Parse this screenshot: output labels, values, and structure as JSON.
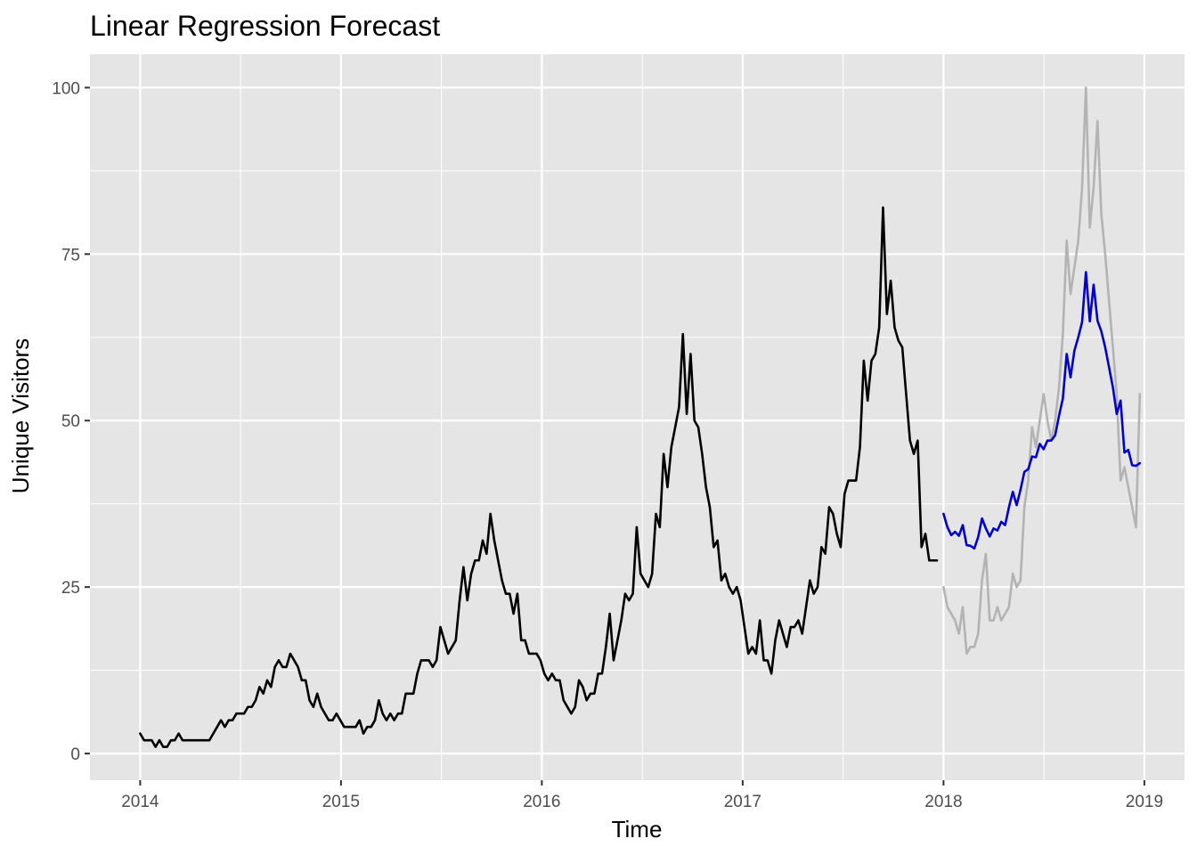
{
  "chart_data": {
    "type": "line",
    "title": "Linear Regression Forecast",
    "xlabel": "Time",
    "ylabel": "Unique Visitors",
    "xlim": [
      2013.75,
      2019.2
    ],
    "ylim": [
      -4,
      105
    ],
    "x_ticks": [
      2014,
      2015,
      2016,
      2017,
      2018,
      2019
    ],
    "x_tick_labels": [
      "2014",
      "2015",
      "2016",
      "2017",
      "2018",
      "2019"
    ],
    "y_ticks": [
      0,
      25,
      50,
      75,
      100
    ],
    "y_tick_labels": [
      "0",
      "25",
      "50",
      "75",
      "100"
    ],
    "grid": true,
    "legend": "none",
    "colors": {
      "panel_bg": "#e5e5e5",
      "grid": "#ffffff",
      "observed": "#000000",
      "forecast": "#0000cc",
      "actual": "#b3b3b3"
    },
    "series": [
      {
        "role": "observed",
        "start": 2014,
        "step_weeks": 1,
        "values": [
          3,
          2,
          2,
          2,
          1,
          2,
          1,
          1,
          2,
          2,
          3,
          2,
          2,
          2,
          2,
          2,
          2,
          2,
          2,
          3,
          4,
          5,
          4,
          5,
          5,
          6,
          6,
          6,
          7,
          7,
          8,
          10,
          9,
          11,
          10,
          13,
          14,
          13,
          13,
          15,
          14,
          13,
          11,
          11,
          8,
          7,
          9,
          7,
          6,
          5,
          5,
          6,
          5,
          4,
          4,
          4,
          4,
          5,
          3,
          4,
          4,
          5,
          8,
          6,
          5,
          6,
          5,
          6,
          6,
          9,
          9,
          9,
          12,
          14,
          14,
          14,
          13,
          14,
          19,
          17,
          15,
          16,
          17,
          23,
          28,
          23,
          27,
          29,
          29,
          32,
          30,
          36,
          32,
          29,
          26,
          24,
          24,
          21,
          24,
          17,
          17,
          15,
          15,
          15,
          14,
          12,
          11,
          12,
          11,
          11,
          8,
          7,
          6,
          7,
          11,
          10,
          8,
          9,
          9,
          12,
          12,
          16,
          21,
          14,
          17,
          20,
          24,
          23,
          24,
          34,
          27,
          26,
          25,
          27,
          36,
          34,
          45,
          40,
          46,
          49,
          52,
          63,
          51,
          60,
          50,
          49,
          45,
          40,
          37,
          31,
          32,
          26,
          27,
          25,
          24,
          25,
          23,
          19,
          15,
          16,
          15,
          20,
          14,
          14,
          12,
          17,
          20,
          18,
          16,
          19,
          19,
          20,
          18,
          22,
          26,
          24,
          25,
          31,
          30,
          37,
          36,
          33,
          31,
          39,
          41,
          41,
          41,
          46,
          59,
          53,
          59,
          60,
          64,
          82,
          66,
          71,
          64,
          62,
          61,
          54,
          47,
          45,
          47,
          31,
          33,
          29,
          29,
          29
        ]
      },
      {
        "role": "forecast",
        "start": 2018,
        "step_weeks": 1,
        "values": [
          36,
          34,
          32.8,
          33.3,
          32.7,
          34.3,
          31.3,
          31.2,
          30.8,
          32.5,
          35.3,
          33.8,
          32.6,
          33.8,
          33.5,
          34.8,
          34.3,
          37,
          39.3,
          37.3,
          39.6,
          42.3,
          42.7,
          44.6,
          44.5,
          46.5,
          45.7,
          47,
          47,
          47.8,
          50.7,
          53.3,
          60,
          56.5,
          60.5,
          62.5,
          64.8,
          72.3,
          64.9,
          70.4,
          65,
          63.4,
          61,
          58,
          55,
          51,
          53,
          45.2,
          45.6,
          43.3,
          43.2,
          43.6
        ]
      },
      {
        "role": "actual",
        "start": 2018,
        "step_weeks": 1,
        "values": [
          25,
          22,
          21,
          20,
          18,
          22,
          15,
          16,
          16,
          18,
          26,
          30,
          20,
          20,
          22,
          20,
          21,
          22,
          27,
          25,
          26,
          37,
          41,
          49,
          46,
          50,
          54,
          50,
          47,
          50,
          55,
          63,
          77,
          69,
          73,
          77,
          85,
          100,
          79,
          85,
          95,
          81,
          75,
          68,
          61,
          54,
          41,
          43,
          40,
          37,
          34,
          54
        ]
      }
    ]
  }
}
